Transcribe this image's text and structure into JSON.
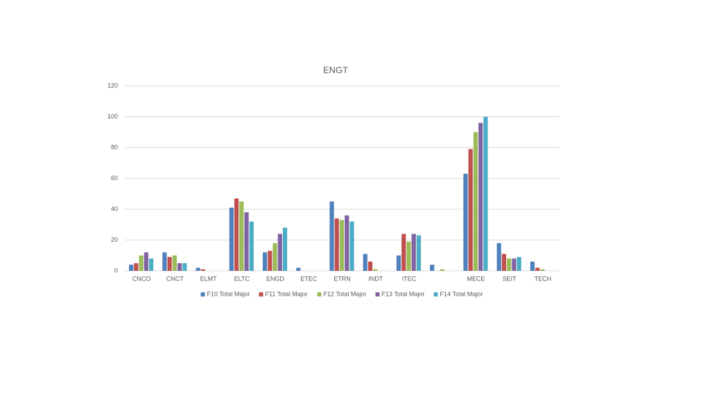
{
  "chart_data": {
    "type": "bar",
    "title": "ENGT",
    "categories": [
      "CNCO",
      "CNCT",
      "ELMT",
      "ELTC",
      "ENGD",
      "ETEC",
      "ETRN",
      "INDT",
      "ITEC",
      null,
      "MECE",
      "SEIT",
      "TECH"
    ],
    "series": [
      {
        "name": "F10 Total Major",
        "color": "#4f81bd",
        "values": [
          4,
          12,
          2,
          41,
          12,
          2,
          45,
          11,
          10,
          4,
          63,
          18,
          6
        ]
      },
      {
        "name": "F11 Total Major",
        "color": "#c0504d",
        "values": [
          5,
          9,
          1,
          47,
          13,
          0,
          34,
          6,
          24,
          0,
          79,
          11,
          2
        ]
      },
      {
        "name": "F12 Total Major",
        "color": "#9bbb59",
        "values": [
          10,
          10,
          0,
          45,
          18,
          0,
          33,
          1,
          19,
          1,
          90,
          8,
          1
        ]
      },
      {
        "name": "F13 Total Major",
        "color": "#8064a2",
        "values": [
          12,
          5,
          0,
          38,
          24,
          0,
          36,
          0,
          24,
          0,
          96,
          8,
          0
        ]
      },
      {
        "name": "F14 Total Major",
        "color": "#4bacc6",
        "values": [
          8,
          5,
          0,
          32,
          28,
          0,
          32,
          0,
          23,
          0,
          100,
          9,
          0
        ]
      }
    ],
    "ylim": [
      0,
      120
    ],
    "yticks": [
      0,
      20,
      40,
      60,
      80,
      100,
      120
    ],
    "grid": true,
    "legend": "bottom"
  }
}
